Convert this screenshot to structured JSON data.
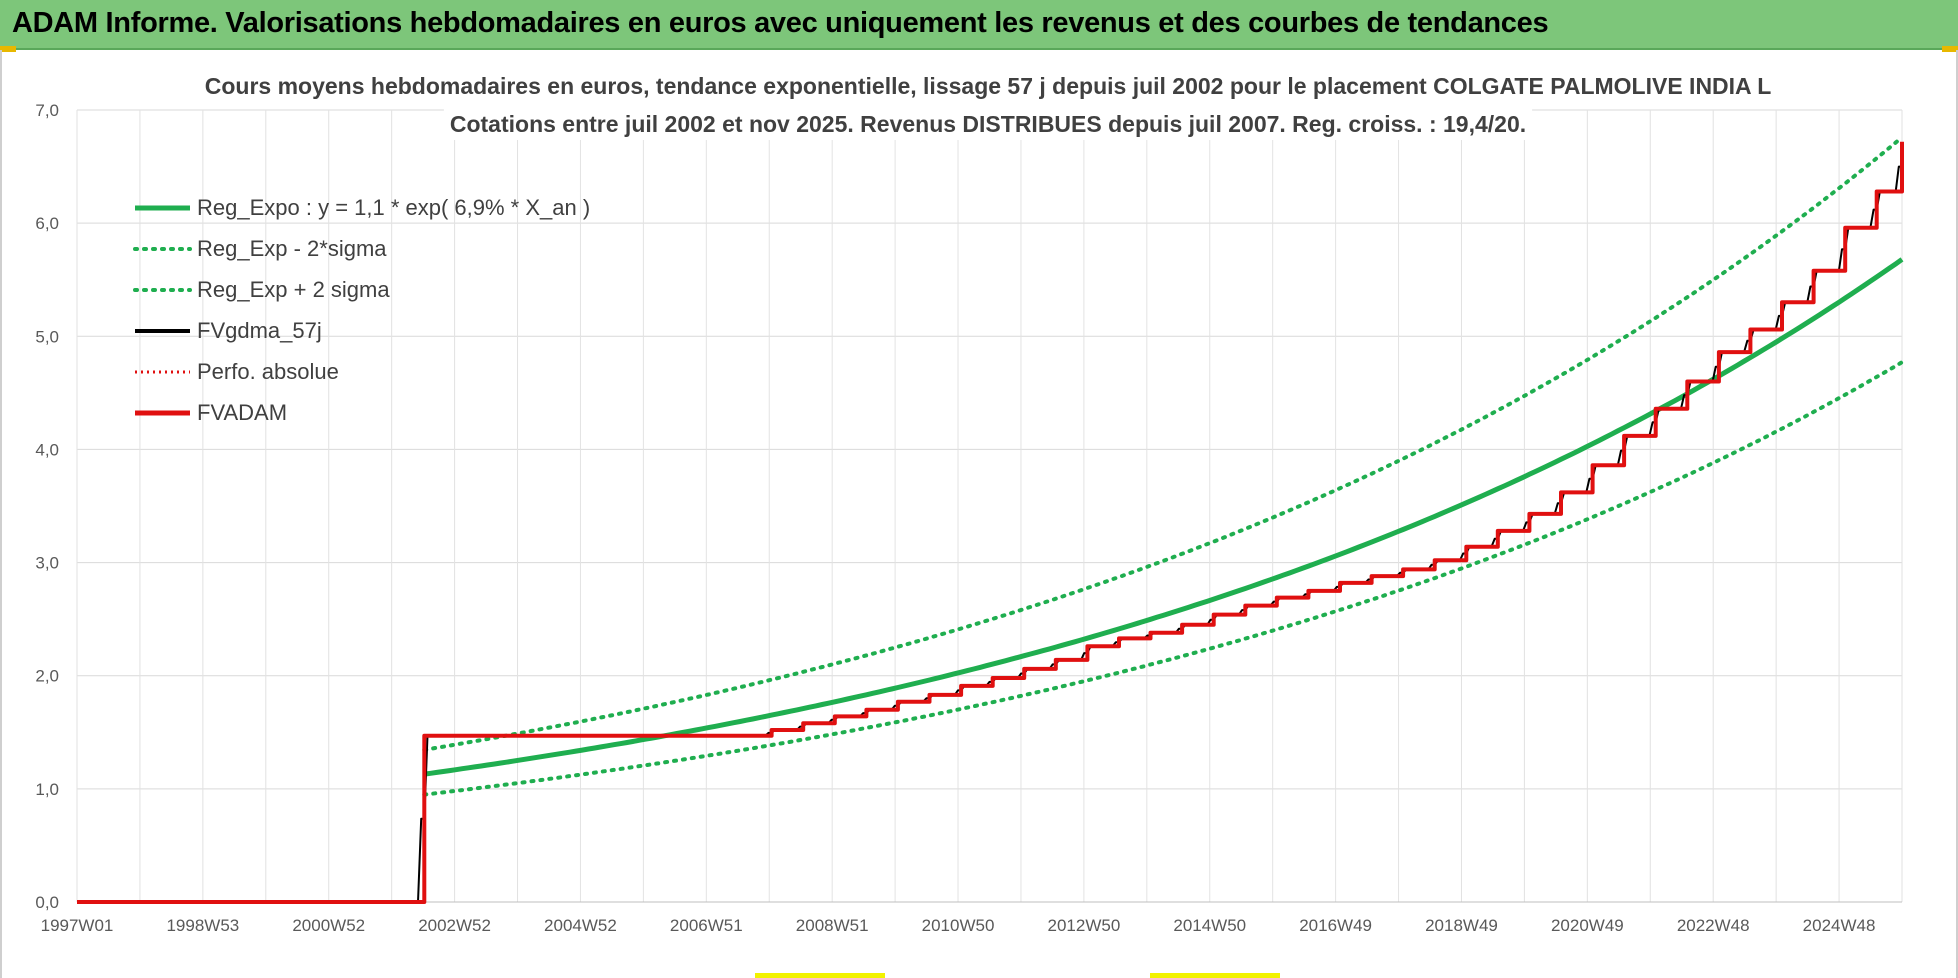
{
  "header": {
    "title": "ADAM Informe. Valorisations hebdomadaires en euros avec uniquement les revenus et des courbes de tendances"
  },
  "chart_data": {
    "type": "line",
    "title_lines": [
      "Cours moyens hebdomadaires en euros, tendance exponentielle, lissage 57 j depuis juil 2002 pour le placement COLGATE PALMOLIVE INDIA L",
      "Cotations entre juil 2002 et nov 2025. Revenus DISTRIBUES depuis juil 2007. Reg. croiss. : 19,4/20."
    ],
    "x_start_year": 1997.0,
    "x_end_year": 2025.9,
    "x_tick_labels": [
      "1997W01",
      "1998W53",
      "2000W52",
      "2002W52",
      "2004W52",
      "2006W51",
      "2008W51",
      "2010W50",
      "2012W50",
      "2014W50",
      "2016W49",
      "2018W49",
      "2020W49",
      "2022W48",
      "2024W48"
    ],
    "y_tick_labels": [
      "0,0",
      "1,0",
      "2,0",
      "3,0",
      "4,0",
      "5,0",
      "6,0",
      "7,0"
    ],
    "ylim": [
      0,
      7
    ],
    "grid": true,
    "legend_position": "top-left",
    "regression": {
      "a": 1.13,
      "rate": 0.069,
      "start_year": 2002.5,
      "lower_factor": 0.84,
      "upper_factor": 1.19
    },
    "series": [
      {
        "name": "Reg_Expo : y = 1,1 * exp( 6,9% *  X_an )",
        "kind": "reg",
        "color": "#1fae4f",
        "style": "solid"
      },
      {
        "name": "Reg_Exp - 2*sigma",
        "kind": "reg_low",
        "color": "#1fae4f",
        "style": "dotted"
      },
      {
        "name": "Reg_Exp + 2 sigma",
        "kind": "reg_high",
        "color": "#1fae4f",
        "style": "dotted"
      },
      {
        "name": "FVgdma_57j",
        "kind": "fvg",
        "color": "#000000",
        "style": "solid"
      },
      {
        "name": "Perfo. absolue",
        "kind": "perfo",
        "color": "#e01010",
        "style": "dotted"
      },
      {
        "name": "FVADAM",
        "kind": "fvadam",
        "color": "#e01010",
        "style": "solid",
        "points": [
          [
            1997.0,
            0
          ],
          [
            2002.48,
            0
          ],
          [
            2002.5,
            1.47
          ],
          [
            2007.5,
            1.47
          ],
          [
            2008.0,
            1.52
          ],
          [
            2008.5,
            1.58
          ],
          [
            2009.0,
            1.64
          ],
          [
            2009.5,
            1.7
          ],
          [
            2010.0,
            1.77
          ],
          [
            2010.5,
            1.83
          ],
          [
            2011.0,
            1.91
          ],
          [
            2011.5,
            1.98
          ],
          [
            2012.0,
            2.06
          ],
          [
            2012.5,
            2.14
          ],
          [
            2013.0,
            2.26
          ],
          [
            2013.5,
            2.33
          ],
          [
            2014.0,
            2.38
          ],
          [
            2014.5,
            2.45
          ],
          [
            2015.0,
            2.54
          ],
          [
            2015.5,
            2.62
          ],
          [
            2016.0,
            2.69
          ],
          [
            2016.5,
            2.75
          ],
          [
            2017.0,
            2.82
          ],
          [
            2017.5,
            2.88
          ],
          [
            2018.0,
            2.94
          ],
          [
            2018.5,
            3.02
          ],
          [
            2019.0,
            3.14
          ],
          [
            2019.5,
            3.28
          ],
          [
            2020.0,
            3.43
          ],
          [
            2020.5,
            3.62
          ],
          [
            2021.0,
            3.86
          ],
          [
            2021.5,
            4.12
          ],
          [
            2022.0,
            4.36
          ],
          [
            2022.5,
            4.6
          ],
          [
            2023.0,
            4.86
          ],
          [
            2023.5,
            5.06
          ],
          [
            2024.0,
            5.3
          ],
          [
            2024.5,
            5.58
          ],
          [
            2025.0,
            5.96
          ],
          [
            2025.5,
            6.28
          ],
          [
            2025.9,
            6.72
          ]
        ]
      }
    ]
  }
}
